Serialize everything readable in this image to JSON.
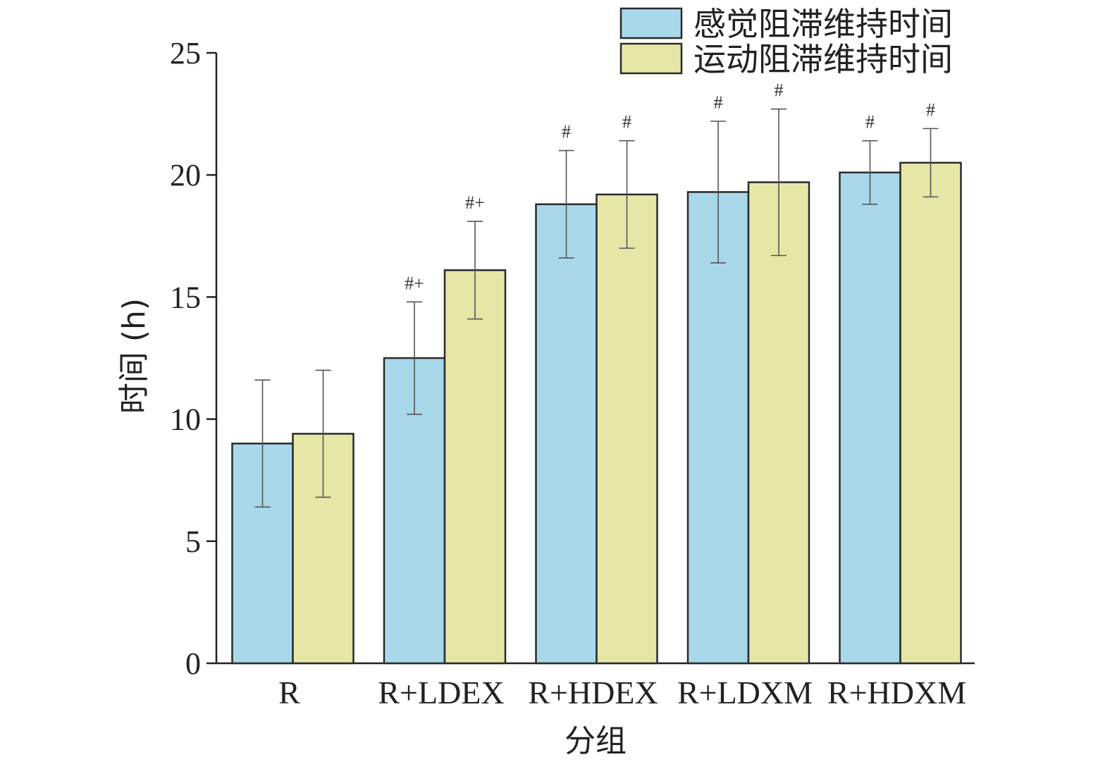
{
  "chart_data": {
    "type": "bar",
    "title": "",
    "xlabel": "分组",
    "ylabel": "时间 (h)",
    "ylim": [
      0,
      25
    ],
    "yticks": [
      0,
      5,
      10,
      15,
      20,
      25
    ],
    "grid": false,
    "legend_position": "top-right",
    "categories": [
      "R",
      "R+LDEX",
      "R+HDEX",
      "R+LDXM",
      "R+HDXM"
    ],
    "series": [
      {
        "name": "感觉阻滞维持时间",
        "color": "#a8d8ea",
        "values": [
          9.0,
          12.5,
          18.8,
          19.3,
          20.1
        ],
        "errors": [
          2.6,
          2.3,
          2.2,
          2.9,
          1.3
        ],
        "annotations": [
          "",
          "#+",
          "#",
          "#",
          "#"
        ]
      },
      {
        "name": "运动阻滞维持时间",
        "color": "#e6e6a6",
        "values": [
          9.4,
          16.1,
          19.2,
          19.7,
          20.5
        ],
        "errors": [
          2.6,
          2.0,
          2.2,
          3.0,
          1.4
        ],
        "annotations": [
          "",
          "#+",
          "#",
          "#",
          "#"
        ]
      }
    ]
  }
}
